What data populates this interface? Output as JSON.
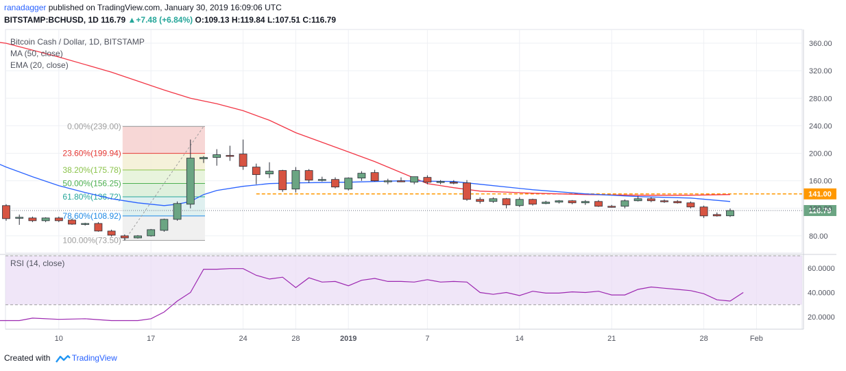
{
  "header": {
    "author": "ranadagger",
    "published_text": "published on TradingView.com, January 30, 2019 16:09:06 UTC",
    "symbol": "BITSTAMP:BCHUSD, 1D",
    "last": "116.79",
    "change_arrow": "▲",
    "change": "+7.48 (+6.84%)",
    "o_label": "O:",
    "o": "109.13",
    "h_label": "H:",
    "h": "119.84",
    "l_label": "L:",
    "l": "107.51",
    "c_label": "C:",
    "c": "116.79"
  },
  "legend": {
    "title": "Bitcoin Cash / Dollar, 1D, BITSTAMP",
    "ma": "MA (50, close)",
    "ema": "EMA (20, close)",
    "rsi": "RSI (14, close)"
  },
  "footer": {
    "created_with": "Created with",
    "brand": "TradingView"
  },
  "colors": {
    "up": "#6ba583",
    "down": "#d75442",
    "ma": "#f23645",
    "ema": "#2962ff",
    "rsi": "#9c27b0",
    "rsi_band": "#e9dcf5",
    "level": "#ff9800",
    "current": "#6ba583"
  },
  "chart_data": {
    "type": "candlestick",
    "price_axis": {
      "range": [
        55,
        380
      ],
      "ticks": [
        "80.00",
        "120.00",
        "160.00",
        "200.00",
        "240.00",
        "280.00",
        "320.00",
        "360.00"
      ]
    },
    "x_ticks": [
      {
        "i": 4,
        "label": "10"
      },
      {
        "i": 11,
        "label": "17"
      },
      {
        "i": 18,
        "label": "24"
      },
      {
        "i": 22,
        "label": "28"
      },
      {
        "i": 26,
        "label": "2019"
      },
      {
        "i": 32,
        "label": "7"
      },
      {
        "i": 39,
        "label": "14"
      },
      {
        "i": 46,
        "label": "21"
      },
      {
        "i": 53,
        "label": "28"
      },
      {
        "i": 57,
        "label": "Feb"
      }
    ],
    "candles": [
      {
        "o": 124,
        "h": 126,
        "l": 102,
        "c": 105
      },
      {
        "o": 107,
        "h": 111,
        "l": 96,
        "c": 107
      },
      {
        "o": 106,
        "h": 108,
        "l": 100,
        "c": 102
      },
      {
        "o": 102,
        "h": 107,
        "l": 100,
        "c": 106
      },
      {
        "o": 106,
        "h": 108,
        "l": 100,
        "c": 102
      },
      {
        "o": 103,
        "h": 105,
        "l": 96,
        "c": 97
      },
      {
        "o": 97,
        "h": 99,
        "l": 95,
        "c": 98
      },
      {
        "o": 98,
        "h": 100,
        "l": 86,
        "c": 87
      },
      {
        "o": 87,
        "h": 89,
        "l": 79,
        "c": 81
      },
      {
        "o": 80,
        "h": 82,
        "l": 73.5,
        "c": 77
      },
      {
        "o": 77,
        "h": 81,
        "l": 76,
        "c": 80
      },
      {
        "o": 80,
        "h": 90,
        "l": 79,
        "c": 89
      },
      {
        "o": 88,
        "h": 105,
        "l": 86,
        "c": 104
      },
      {
        "o": 104,
        "h": 130,
        "l": 102,
        "c": 127
      },
      {
        "o": 126,
        "h": 220,
        "l": 120,
        "c": 193
      },
      {
        "o": 192,
        "h": 196,
        "l": 186,
        "c": 194
      },
      {
        "o": 194,
        "h": 206,
        "l": 182,
        "c": 198
      },
      {
        "o": 197,
        "h": 211,
        "l": 189,
        "c": 196
      },
      {
        "o": 199,
        "h": 220,
        "l": 176,
        "c": 181
      },
      {
        "o": 180,
        "h": 185,
        "l": 155,
        "c": 169
      },
      {
        "o": 170,
        "h": 187,
        "l": 164,
        "c": 174
      },
      {
        "o": 175,
        "h": 176,
        "l": 144,
        "c": 147
      },
      {
        "o": 148,
        "h": 180,
        "l": 143,
        "c": 175
      },
      {
        "o": 175,
        "h": 177,
        "l": 157,
        "c": 161
      },
      {
        "o": 162,
        "h": 166,
        "l": 159,
        "c": 162
      },
      {
        "o": 162,
        "h": 165,
        "l": 149,
        "c": 151
      },
      {
        "o": 148,
        "h": 165,
        "l": 146,
        "c": 164
      },
      {
        "o": 164,
        "h": 174,
        "l": 160,
        "c": 171
      },
      {
        "o": 172,
        "h": 176,
        "l": 159,
        "c": 160
      },
      {
        "o": 159,
        "h": 163,
        "l": 155,
        "c": 160
      },
      {
        "o": 160,
        "h": 165,
        "l": 158,
        "c": 159
      },
      {
        "o": 158,
        "h": 166,
        "l": 155,
        "c": 166
      },
      {
        "o": 165,
        "h": 168,
        "l": 155,
        "c": 158
      },
      {
        "o": 158,
        "h": 161,
        "l": 155,
        "c": 159
      },
      {
        "o": 158,
        "h": 161,
        "l": 155,
        "c": 157
      },
      {
        "o": 157,
        "h": 161,
        "l": 131,
        "c": 133
      },
      {
        "o": 133,
        "h": 136,
        "l": 127,
        "c": 130
      },
      {
        "o": 130,
        "h": 136,
        "l": 128,
        "c": 134
      },
      {
        "o": 134,
        "h": 135,
        "l": 120,
        "c": 125
      },
      {
        "o": 124,
        "h": 136,
        "l": 122,
        "c": 133
      },
      {
        "o": 133,
        "h": 134,
        "l": 124,
        "c": 126
      },
      {
        "o": 127,
        "h": 131,
        "l": 126,
        "c": 129
      },
      {
        "o": 129,
        "h": 132,
        "l": 127,
        "c": 131
      },
      {
        "o": 131,
        "h": 132,
        "l": 126,
        "c": 128
      },
      {
        "o": 128,
        "h": 132,
        "l": 125,
        "c": 130
      },
      {
        "o": 130,
        "h": 132,
        "l": 122,
        "c": 123
      },
      {
        "o": 123,
        "h": 125,
        "l": 121,
        "c": 122
      },
      {
        "o": 123,
        "h": 133,
        "l": 120,
        "c": 131
      },
      {
        "o": 131,
        "h": 138,
        "l": 130,
        "c": 134
      },
      {
        "o": 134,
        "h": 136,
        "l": 129,
        "c": 131
      },
      {
        "o": 131,
        "h": 133,
        "l": 128,
        "c": 130
      },
      {
        "o": 130,
        "h": 132,
        "l": 127,
        "c": 128
      },
      {
        "o": 128,
        "h": 130,
        "l": 120,
        "c": 122
      },
      {
        "o": 122,
        "h": 124,
        "l": 106,
        "c": 109
      },
      {
        "o": 111,
        "h": 114,
        "l": 108,
        "c": 109
      },
      {
        "o": 109.13,
        "h": 119.84,
        "l": 107.51,
        "c": 116.79
      }
    ],
    "ma50": [
      [
        -4,
        370
      ],
      [
        0,
        360
      ],
      [
        4,
        340
      ],
      [
        8,
        318
      ],
      [
        10,
        305
      ],
      [
        12,
        292
      ],
      [
        14,
        280
      ],
      [
        16,
        272
      ],
      [
        18,
        262
      ],
      [
        20,
        248
      ],
      [
        22,
        230
      ],
      [
        24,
        216
      ],
      [
        26,
        202
      ],
      [
        28,
        188
      ],
      [
        30,
        172
      ],
      [
        32,
        156
      ],
      [
        34,
        150
      ],
      [
        36,
        145
      ],
      [
        40,
        142
      ],
      [
        44,
        140
      ],
      [
        48,
        139
      ],
      [
        52,
        139
      ],
      [
        55,
        140
      ]
    ],
    "ema20": [
      [
        -4,
        215
      ],
      [
        -2,
        196
      ],
      [
        0,
        180
      ],
      [
        2,
        166
      ],
      [
        4,
        153
      ],
      [
        6,
        143
      ],
      [
        8,
        134
      ],
      [
        10,
        128
      ],
      [
        12,
        124
      ],
      [
        13,
        126
      ],
      [
        14,
        130
      ],
      [
        15,
        140
      ],
      [
        16,
        146
      ],
      [
        18,
        152
      ],
      [
        20,
        156
      ],
      [
        22,
        157
      ],
      [
        26,
        158
      ],
      [
        30,
        160
      ],
      [
        34,
        159
      ],
      [
        36,
        155
      ],
      [
        40,
        147
      ],
      [
        44,
        141
      ],
      [
        48,
        137
      ],
      [
        52,
        135
      ],
      [
        55,
        130
      ]
    ],
    "fib": {
      "high": 239.0,
      "low": 73.5,
      "levels": [
        {
          "label": "0.00%(239.00)",
          "value": 239.0,
          "color": "#9e9e9e"
        },
        {
          "label": "23.60%(199.94)",
          "value": 199.94,
          "color": "#e53935"
        },
        {
          "label": "38.20%(175.78)",
          "value": 175.78,
          "color": "#8bc34a"
        },
        {
          "label": "50.00%(156.25)",
          "value": 156.25,
          "color": "#4caf50"
        },
        {
          "label": "61.80%(136.72)",
          "value": 136.72,
          "color": "#26a69a"
        },
        {
          "label": "78.60%(108.92)",
          "value": 108.92,
          "color": "#1e88e5"
        },
        {
          "label": "100.00%(73.50)",
          "value": 73.5,
          "color": "#9e9e9e"
        }
      ]
    },
    "level_line": {
      "value": 141.0,
      "label": "141.00"
    },
    "current_price": {
      "value": 116.79,
      "label": "116.79"
    },
    "rsi": {
      "range": [
        10,
        70
      ],
      "band": [
        30,
        70
      ],
      "ticks": [
        "20.0000",
        "40.0000",
        "60.0000"
      ],
      "values": [
        [
          -4,
          17
        ],
        [
          0,
          17
        ],
        [
          1,
          17
        ],
        [
          2,
          19
        ],
        [
          4,
          18
        ],
        [
          6,
          18.5
        ],
        [
          8,
          17
        ],
        [
          10,
          17
        ],
        [
          11,
          18.5
        ],
        [
          12,
          24
        ],
        [
          13,
          33
        ],
        [
          14,
          40
        ],
        [
          15,
          59
        ],
        [
          16,
          59
        ],
        [
          17,
          59.5
        ],
        [
          18,
          59.5
        ],
        [
          19,
          54
        ],
        [
          20,
          51
        ],
        [
          21,
          52.5
        ],
        [
          22,
          44
        ],
        [
          23,
          52
        ],
        [
          24,
          48.5
        ],
        [
          25,
          49
        ],
        [
          26,
          45.5
        ],
        [
          27,
          50
        ],
        [
          28,
          51.5
        ],
        [
          29,
          49
        ],
        [
          30,
          49
        ],
        [
          31,
          48.5
        ],
        [
          32,
          50.5
        ],
        [
          33,
          48.5
        ],
        [
          34,
          49
        ],
        [
          35,
          48.5
        ],
        [
          36,
          40
        ],
        [
          37,
          38.5
        ],
        [
          38,
          40
        ],
        [
          39,
          37.5
        ],
        [
          40,
          41
        ],
        [
          41,
          39.5
        ],
        [
          42,
          39.5
        ],
        [
          43,
          40.5
        ],
        [
          44,
          40
        ],
        [
          45,
          41
        ],
        [
          46,
          38
        ],
        [
          47,
          38
        ],
        [
          48,
          42.5
        ],
        [
          49,
          44.5
        ],
        [
          50,
          43.5
        ],
        [
          51,
          42.5
        ],
        [
          52,
          41.5
        ],
        [
          53,
          39
        ],
        [
          54,
          34
        ],
        [
          55,
          33
        ],
        [
          56,
          40
        ]
      ]
    }
  }
}
